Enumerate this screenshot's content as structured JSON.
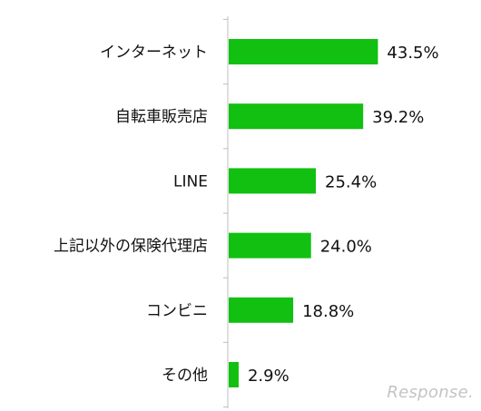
{
  "chart_data": {
    "type": "bar",
    "orientation": "horizontal",
    "categories": [
      "インターネット",
      "自転車販売店",
      "LINE",
      "上記以外の保険代理店",
      "コンビニ",
      "その他"
    ],
    "values": [
      43.5,
      39.2,
      25.4,
      24.0,
      18.8,
      2.9
    ],
    "value_labels": [
      "43.5%",
      "39.2%",
      "25.4%",
      "24.0%",
      "18.8%",
      "2.9%"
    ],
    "title": "",
    "xlabel": "",
    "ylabel": "",
    "xlim": [
      0,
      100
    ],
    "grid": false,
    "legend": "none",
    "bar_color": "#11c011",
    "axis_color": "#bfbfbf"
  },
  "logo_text": "Response."
}
